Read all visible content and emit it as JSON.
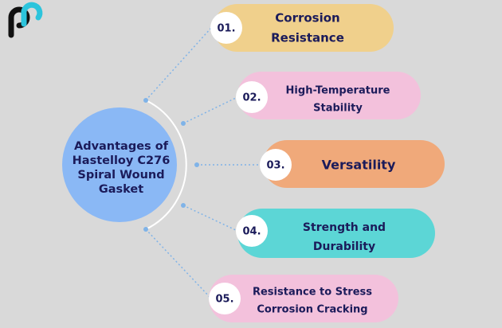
{
  "center": {
    "lines": [
      "Advantages of",
      "Hastelloy C276",
      "Spiral Wound",
      "Gasket"
    ]
  },
  "items": [
    {
      "number": "01.",
      "lines": [
        "Corrosion",
        "Resistance"
      ]
    },
    {
      "number": "02.",
      "lines": [
        "High-Temperature",
        "Stability"
      ]
    },
    {
      "number": "03.",
      "lines": [
        "Versatility"
      ]
    },
    {
      "number": "04.",
      "lines": [
        "Strength and",
        "Durability"
      ]
    },
    {
      "number": "05.",
      "lines": [
        "Resistance to Stress",
        "Corrosion Cracking"
      ]
    }
  ]
}
